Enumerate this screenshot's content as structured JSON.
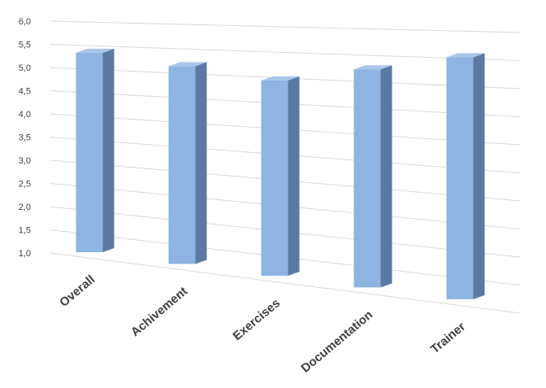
{
  "chart_data": {
    "type": "bar3d",
    "categories": [
      "Overall",
      "Achivement",
      "Exercises",
      "Documentation",
      "Trainer"
    ],
    "values": [
      5.3,
      5.1,
      4.9,
      5.2,
      5.5
    ],
    "color": "#8db4e2",
    "ylim": [
      1,
      6
    ],
    "yticks": [
      {
        "value": 1,
        "label": "1,0"
      },
      {
        "value": 1.5,
        "label": "1,5"
      },
      {
        "value": 2,
        "label": "2,0"
      },
      {
        "value": 2.5,
        "label": "2,5"
      },
      {
        "value": 3,
        "label": "3,0"
      },
      {
        "value": 3.5,
        "label": "3,5"
      },
      {
        "value": 4,
        "label": "4,0"
      },
      {
        "value": 4.5,
        "label": "4,5"
      },
      {
        "value": 5,
        "label": "5,0"
      },
      {
        "value": 5.5,
        "label": "5,5"
      },
      {
        "value": 6,
        "label": "6,0"
      }
    ],
    "grid": true
  }
}
